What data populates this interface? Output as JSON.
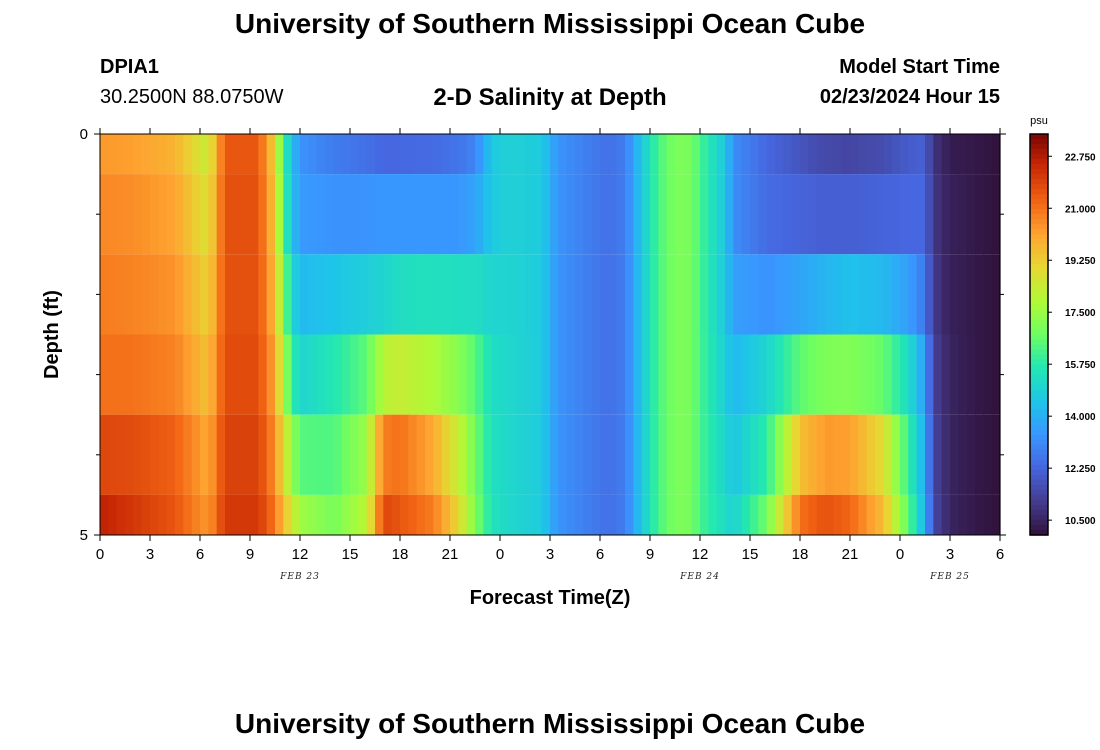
{
  "header": {
    "title": "University of Southern Mississippi Ocean Cube",
    "station_id": "DPIA1",
    "coords": "30.2500N  88.0750W",
    "chart_title": "2-D Salinity at Depth",
    "model_start_label": "Model Start Time",
    "model_start_value": "02/23/2024 Hour 15"
  },
  "footer": {
    "title": "University of Southern Mississippi Ocean Cube"
  },
  "chart_data": {
    "type": "heatmap",
    "title": "2-D Salinity at Depth",
    "xlabel": "Forecast Time(Z)",
    "ylabel": "Depth (ft)",
    "x_unit": "hours since 02/23/2024 00Z",
    "xlim": [
      0,
      54
    ],
    "ylim": [
      0,
      5
    ],
    "x_tick_values": [
      0,
      3,
      6,
      9,
      12,
      15,
      18,
      21,
      24,
      27,
      30,
      33,
      36,
      39,
      42,
      45,
      48,
      51,
      54
    ],
    "x_tick_labels": [
      "0",
      "3",
      "6",
      "9",
      "12",
      "15",
      "18",
      "21",
      "0",
      "3",
      "6",
      "9",
      "12",
      "15",
      "18",
      "21",
      "0",
      "3",
      "6"
    ],
    "y_tick_labels": [
      {
        "value": 0,
        "label": "0"
      },
      {
        "value": 5,
        "label": "5"
      }
    ],
    "y_minor_ticks": [
      1,
      2,
      3,
      4
    ],
    "date_labels": [
      {
        "x": 12,
        "label": "FEB 23"
      },
      {
        "x": 36,
        "label": "FEB 24"
      },
      {
        "x": 51,
        "label": "FEB 25"
      }
    ],
    "depth_layers": [
      0,
      1,
      2,
      3,
      4,
      5
    ],
    "time_knots": [
      0,
      2,
      4.5,
      6.5,
      7.5,
      9.5,
      10.5,
      11,
      11.5,
      12,
      14,
      16,
      17,
      18,
      20,
      21.5,
      22.5,
      23.5,
      24.5,
      26.5,
      27.5,
      30.5,
      31.5,
      32.5,
      33.5,
      34.5,
      35.5,
      36,
      37.5,
      38,
      40,
      42,
      43.5,
      45,
      47,
      48.5,
      49.5,
      50,
      51,
      52.5,
      54
    ],
    "salinity_by_layer": [
      [
        20.3,
        20.2,
        19.8,
        18.3,
        21.5,
        21.5,
        19.0,
        16.0,
        14.5,
        13.3,
        12.8,
        12.5,
        12.3,
        12.3,
        12.4,
        12.6,
        13.0,
        14.6,
        14.9,
        14.7,
        13.3,
        12.5,
        12.8,
        14.6,
        16.2,
        17.0,
        16.9,
        16.2,
        14.6,
        13.2,
        12.3,
        11.8,
        11.5,
        11.4,
        11.6,
        12.0,
        12.1,
        10.9,
        10.3,
        10.2,
        10.0
      ],
      [
        20.6,
        20.5,
        20.1,
        18.7,
        21.6,
        21.6,
        19.3,
        16.2,
        14.5,
        13.5,
        13.3,
        13.3,
        13.4,
        13.4,
        13.4,
        13.4,
        13.7,
        14.6,
        14.9,
        14.7,
        13.3,
        12.5,
        12.8,
        14.6,
        16.2,
        17.0,
        16.9,
        16.2,
        14.6,
        13.2,
        12.4,
        12.2,
        12.1,
        12.1,
        12.2,
        12.3,
        12.3,
        11.0,
        10.4,
        10.2,
        10.0
      ],
      [
        20.8,
        20.7,
        20.4,
        19.1,
        21.6,
        21.6,
        19.6,
        17.0,
        15.2,
        14.2,
        14.5,
        14.8,
        15.0,
        15.3,
        15.4,
        15.3,
        15.3,
        15.0,
        15.0,
        14.7,
        13.3,
        12.5,
        12.8,
        14.6,
        16.2,
        17.0,
        16.9,
        16.2,
        14.6,
        13.6,
        13.3,
        13.7,
        14.1,
        14.4,
        14.2,
        13.6,
        12.7,
        11.1,
        10.4,
        10.2,
        10.0
      ],
      [
        21.0,
        21.0,
        20.7,
        19.5,
        21.7,
        21.7,
        20.0,
        17.8,
        16.0,
        15.0,
        15.6,
        16.5,
        18.0,
        18.3,
        17.8,
        17.2,
        16.4,
        15.3,
        15.1,
        14.7,
        13.3,
        12.5,
        12.8,
        14.6,
        16.2,
        17.0,
        16.9,
        16.2,
        14.8,
        14.2,
        15.0,
        16.5,
        17.0,
        17.1,
        16.6,
        15.3,
        13.5,
        11.3,
        10.5,
        10.2,
        10.0
      ],
      [
        21.8,
        21.7,
        21.3,
        20.0,
        21.9,
        21.9,
        20.5,
        18.8,
        17.5,
        16.4,
        16.3,
        17.5,
        20.8,
        21.0,
        20.0,
        18.3,
        16.8,
        15.4,
        15.1,
        14.7,
        13.3,
        12.5,
        12.8,
        14.6,
        16.2,
        17.0,
        16.9,
        16.2,
        15.0,
        14.5,
        15.8,
        19.5,
        20.3,
        20.2,
        18.8,
        16.0,
        13.8,
        11.4,
        10.5,
        10.2,
        10.0
      ],
      [
        22.6,
        22.1,
        21.5,
        20.3,
        22.1,
        22.1,
        20.9,
        19.6,
        18.6,
        17.6,
        16.9,
        18.0,
        21.8,
        21.5,
        20.8,
        19.0,
        17.0,
        15.5,
        15.1,
        14.7,
        13.3,
        12.5,
        12.8,
        14.6,
        16.2,
        17.0,
        16.9,
        16.2,
        15.2,
        14.9,
        16.8,
        21.0,
        21.6,
        21.2,
        19.6,
        16.5,
        14.0,
        11.5,
        10.5,
        10.2,
        10.0
      ]
    ],
    "colorbar": {
      "units": "psu",
      "min": 10.0,
      "max": 23.5,
      "tick_values": [
        22.75,
        21.0,
        19.25,
        17.5,
        15.75,
        14.0,
        12.25,
        10.5
      ],
      "tick_labels": [
        "22.750",
        "21.000",
        "19.250",
        "17.500",
        "15.750",
        "14.000",
        "12.250",
        "10.500"
      ]
    }
  }
}
